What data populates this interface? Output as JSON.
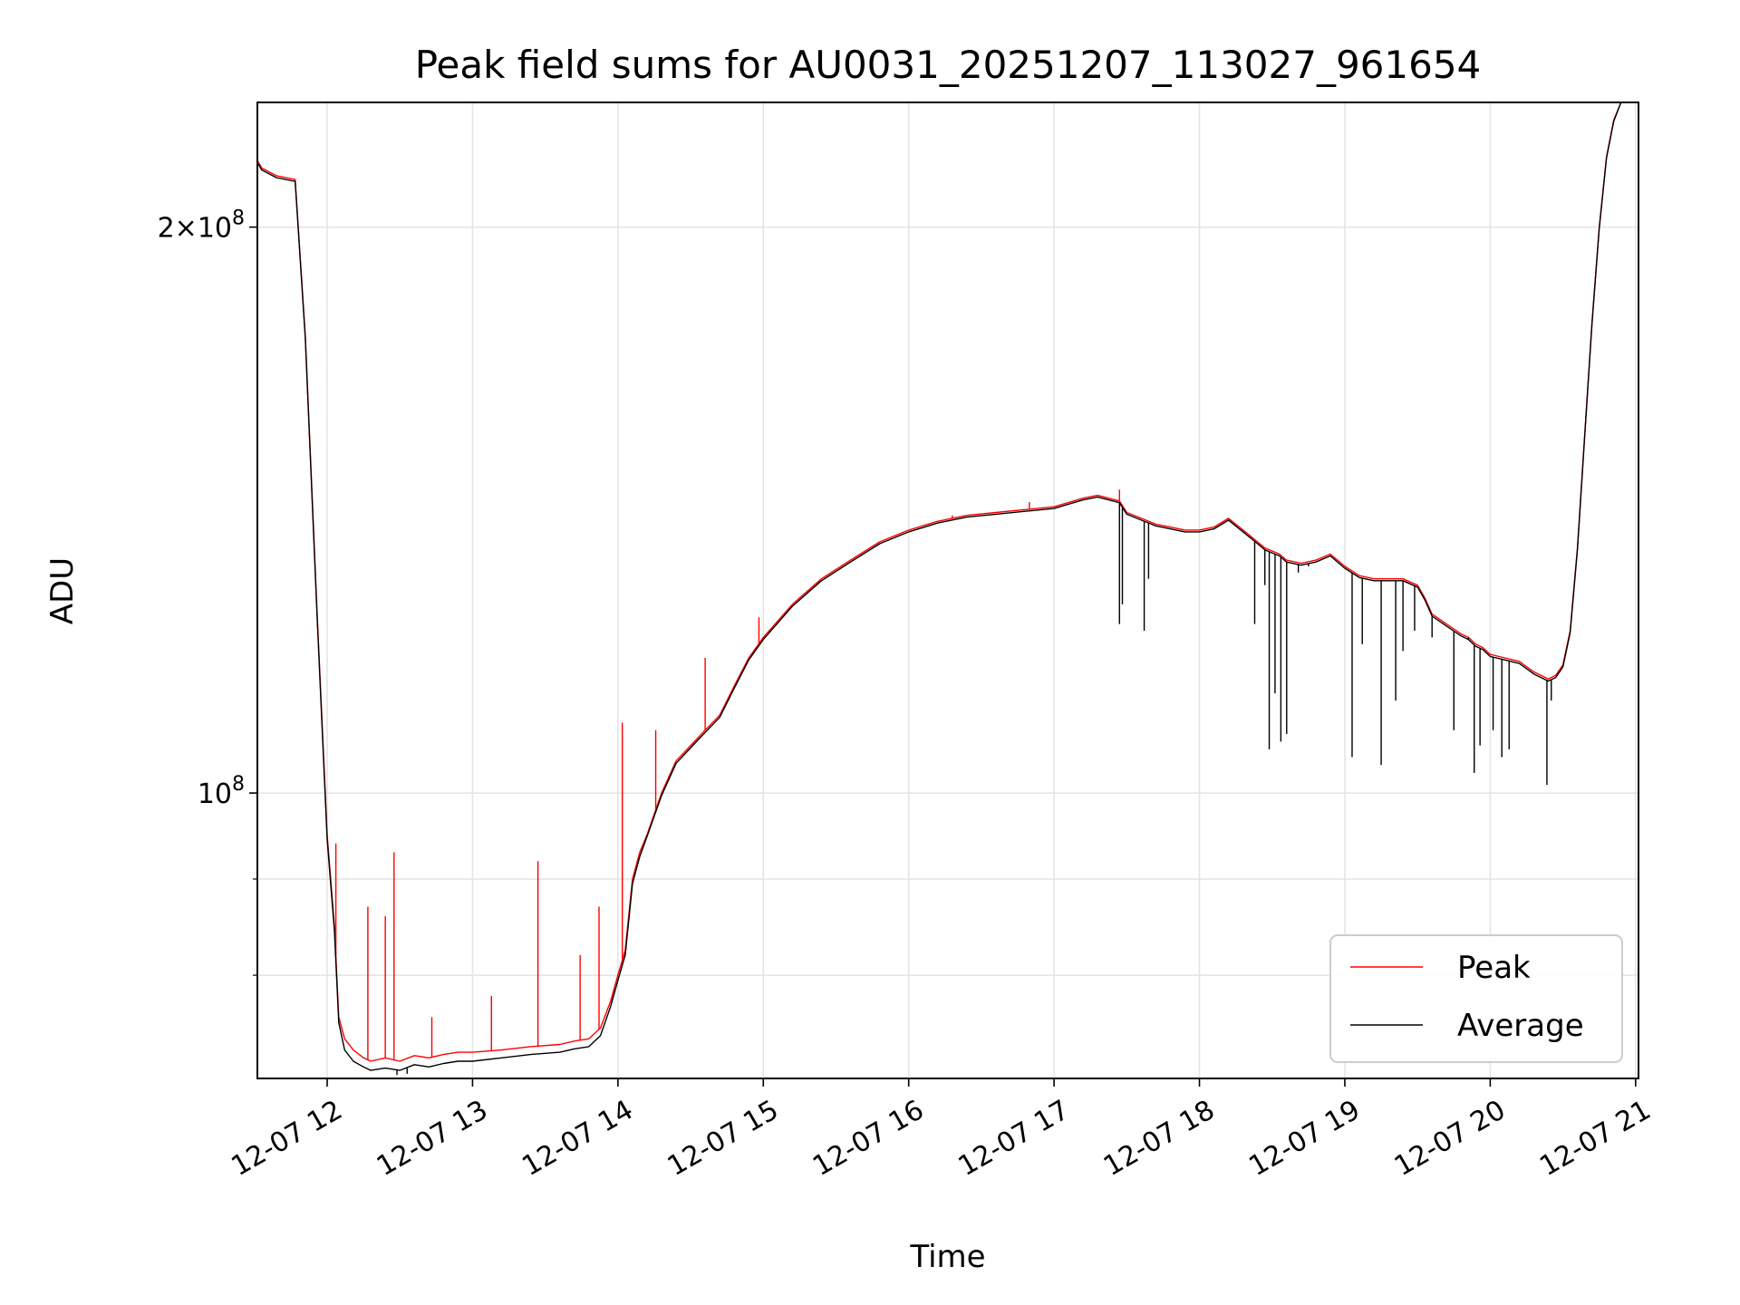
{
  "chart_data": {
    "type": "line",
    "title": "Peak field sums for AU0031_20251207_113027_961654",
    "xlabel": "Time",
    "ylabel": "ADU",
    "yscale": "log",
    "grid": true,
    "legend_loc": "lower right",
    "xlim": [
      11.52,
      21.02
    ],
    "ylim": [
      70500000,
      233000000
    ],
    "x_ticks": [
      {
        "value": 12,
        "label": "12-07 12"
      },
      {
        "value": 13,
        "label": "12-07 13"
      },
      {
        "value": 14,
        "label": "12-07 14"
      },
      {
        "value": 15,
        "label": "12-07 15"
      },
      {
        "value": 16,
        "label": "12-07 16"
      },
      {
        "value": 17,
        "label": "12-07 17"
      },
      {
        "value": 18,
        "label": "12-07 18"
      },
      {
        "value": 19,
        "label": "12-07 19"
      },
      {
        "value": 20,
        "label": "12-07 20"
      },
      {
        "value": 21,
        "label": "12-07 21"
      }
    ],
    "y_major_ticks": [
      {
        "value": 200000000,
        "base": "2×10",
        "exp": "8"
      },
      {
        "value": 100000000,
        "base": "10",
        "exp": "8"
      }
    ],
    "y_minor_ticks": [
      90000000,
      80000000
    ],
    "series": [
      {
        "name": "Peak",
        "color": "#ff0000",
        "x": [
          11.52,
          11.55,
          11.65,
          11.78,
          11.85,
          11.93,
          12.0,
          12.05,
          12.08,
          12.12,
          12.18,
          12.25,
          12.3,
          12.4,
          12.5,
          12.6,
          12.7,
          12.8,
          12.9,
          13.0,
          13.2,
          13.4,
          13.6,
          13.7,
          13.8,
          13.88,
          13.95,
          14.0,
          14.05,
          14.1,
          14.15,
          14.2,
          14.3,
          14.4,
          14.5,
          14.6,
          14.7,
          14.8,
          14.9,
          15.0,
          15.2,
          15.4,
          15.6,
          15.8,
          16.0,
          16.2,
          16.4,
          16.6,
          16.8,
          17.0,
          17.2,
          17.3,
          17.45,
          17.5,
          17.6,
          17.7,
          17.8,
          17.9,
          18.0,
          18.1,
          18.2,
          18.3,
          18.35,
          18.4,
          18.45,
          18.5,
          18.55,
          18.6,
          18.7,
          18.8,
          18.9,
          19.0,
          19.1,
          19.2,
          19.3,
          19.4,
          19.45,
          19.5,
          19.55,
          19.6,
          19.7,
          19.8,
          19.85,
          19.9,
          19.95,
          20.0,
          20.1,
          20.2,
          20.3,
          20.35,
          20.4,
          20.45,
          20.5,
          20.55,
          20.6,
          20.65,
          20.7,
          20.75,
          20.8,
          20.85,
          20.9,
          21.02
        ],
        "y": [
          217000000,
          215000000,
          213000000,
          212000000,
          175000000,
          125000000,
          95000000,
          85000000,
          76000000,
          74000000,
          73000000,
          72300000,
          72000000,
          72300000,
          72000000,
          72500000,
          72300000,
          72600000,
          72800000,
          72800000,
          73000000,
          73300000,
          73500000,
          73800000,
          74000000,
          75000000,
          77500000,
          80000000,
          82500000,
          90000000,
          93000000,
          95000000,
          100000000,
          104000000,
          106000000,
          108000000,
          110000000,
          114000000,
          118000000,
          121000000,
          126000000,
          130000000,
          133000000,
          136000000,
          138000000,
          139500000,
          140500000,
          141000000,
          141500000,
          142000000,
          143500000,
          144000000,
          143000000,
          141000000,
          140000000,
          139000000,
          138500000,
          138000000,
          138000000,
          138500000,
          140000000,
          138000000,
          137000000,
          136000000,
          135000000,
          134500000,
          134000000,
          133000000,
          132500000,
          133000000,
          134000000,
          132000000,
          130500000,
          130000000,
          130000000,
          130000000,
          129500000,
          129000000,
          127000000,
          124500000,
          123000000,
          121500000,
          121000000,
          120000000,
          119500000,
          118500000,
          118000000,
          117500000,
          116000000,
          115500000,
          115000000,
          115500000,
          117000000,
          122000000,
          135000000,
          155000000,
          178000000,
          200000000,
          218000000,
          228000000,
          233000000,
          233000000
        ],
        "spikes": [
          [
            12.06,
            94000000
          ],
          [
            12.28,
            87000000
          ],
          [
            12.4,
            86000000
          ],
          [
            12.46,
            93000000
          ],
          [
            12.72,
            76000000
          ],
          [
            13.13,
            78000000
          ],
          [
            13.45,
            92000000
          ],
          [
            13.74,
            82000000
          ],
          [
            13.87,
            87000000
          ],
          [
            14.03,
            109000000
          ],
          [
            14.26,
            108000000
          ],
          [
            14.6,
            118000000
          ],
          [
            14.97,
            124000000
          ],
          [
            16.3,
            140500000
          ],
          [
            16.83,
            142800000
          ],
          [
            17.45,
            145000000
          ]
        ]
      },
      {
        "name": "Average",
        "color": "#000000",
        "x": [
          11.52,
          11.55,
          11.65,
          11.78,
          11.85,
          11.93,
          12.0,
          12.05,
          12.08,
          12.12,
          12.18,
          12.25,
          12.3,
          12.4,
          12.5,
          12.6,
          12.7,
          12.8,
          12.9,
          13.0,
          13.2,
          13.4,
          13.6,
          13.7,
          13.8,
          13.88,
          13.95,
          14.0,
          14.05,
          14.1,
          14.15,
          14.2,
          14.3,
          14.4,
          14.5,
          14.6,
          14.7,
          14.8,
          14.9,
          15.0,
          15.2,
          15.4,
          15.6,
          15.8,
          16.0,
          16.2,
          16.4,
          16.6,
          16.8,
          17.0,
          17.2,
          17.3,
          17.45,
          17.5,
          17.6,
          17.7,
          17.8,
          17.9,
          18.0,
          18.1,
          18.2,
          18.3,
          18.35,
          18.4,
          18.45,
          18.5,
          18.55,
          18.6,
          18.7,
          18.8,
          18.9,
          19.0,
          19.1,
          19.2,
          19.3,
          19.4,
          19.45,
          19.5,
          19.55,
          19.6,
          19.7,
          19.8,
          19.85,
          19.9,
          19.95,
          20.0,
          20.1,
          20.2,
          20.3,
          20.35,
          20.4,
          20.45,
          20.5,
          20.55,
          20.6,
          20.65,
          20.7,
          20.75,
          20.8,
          20.85,
          20.9,
          21.02
        ],
        "y": [
          216500000,
          214500000,
          212500000,
          211500000,
          174500000,
          124500000,
          94500000,
          84500000,
          75500000,
          73000000,
          72000000,
          71500000,
          71200000,
          71400000,
          71200000,
          71700000,
          71500000,
          71800000,
          72000000,
          72000000,
          72300000,
          72600000,
          72800000,
          73100000,
          73300000,
          74300000,
          77000000,
          79500000,
          82000000,
          89500000,
          92500000,
          94800000,
          99700000,
          103700000,
          105700000,
          107700000,
          109700000,
          113700000,
          117700000,
          120700000,
          125700000,
          129700000,
          132700000,
          135700000,
          137700000,
          139200000,
          140200000,
          140700000,
          141200000,
          141700000,
          143200000,
          143700000,
          142700000,
          140700000,
          139700000,
          138700000,
          138200000,
          137700000,
          137700000,
          138200000,
          139700000,
          137700000,
          136700000,
          135700000,
          134700000,
          134200000,
          133700000,
          132700000,
          132200000,
          132700000,
          133700000,
          131700000,
          130200000,
          129700000,
          129700000,
          129700000,
          129200000,
          128700000,
          126700000,
          124200000,
          122700000,
          121200000,
          120700000,
          119700000,
          119200000,
          118200000,
          117700000,
          117200000,
          115700000,
          115200000,
          114700000,
          115200000,
          116700000,
          121700000,
          134700000,
          154700000,
          177700000,
          199700000,
          217700000,
          227700000,
          233000000,
          233000000
        ],
        "dips": [
          [
            12.48,
            70800000
          ],
          [
            12.55,
            70900000
          ],
          [
            17.45,
            123000000
          ],
          [
            17.47,
            126000000
          ],
          [
            17.62,
            122000000
          ],
          [
            17.65,
            130000000
          ],
          [
            18.38,
            123000000
          ],
          [
            18.45,
            129000000
          ],
          [
            18.48,
            105500000
          ],
          [
            18.52,
            113000000
          ],
          [
            18.56,
            106500000
          ],
          [
            18.6,
            107500000
          ],
          [
            18.68,
            131000000
          ],
          [
            18.75,
            132000000
          ],
          [
            19.05,
            104500000
          ],
          [
            19.12,
            120000000
          ],
          [
            19.25,
            103500000
          ],
          [
            19.35,
            112000000
          ],
          [
            19.4,
            119000000
          ],
          [
            19.48,
            122000000
          ],
          [
            19.6,
            121000000
          ],
          [
            19.75,
            108000000
          ],
          [
            19.85,
            121000000
          ],
          [
            19.89,
            102500000
          ],
          [
            19.93,
            106000000
          ],
          [
            20.02,
            108000000
          ],
          [
            20.08,
            104500000
          ],
          [
            20.13,
            105500000
          ],
          [
            20.39,
            101000000
          ],
          [
            20.42,
            112000000
          ]
        ]
      }
    ]
  }
}
